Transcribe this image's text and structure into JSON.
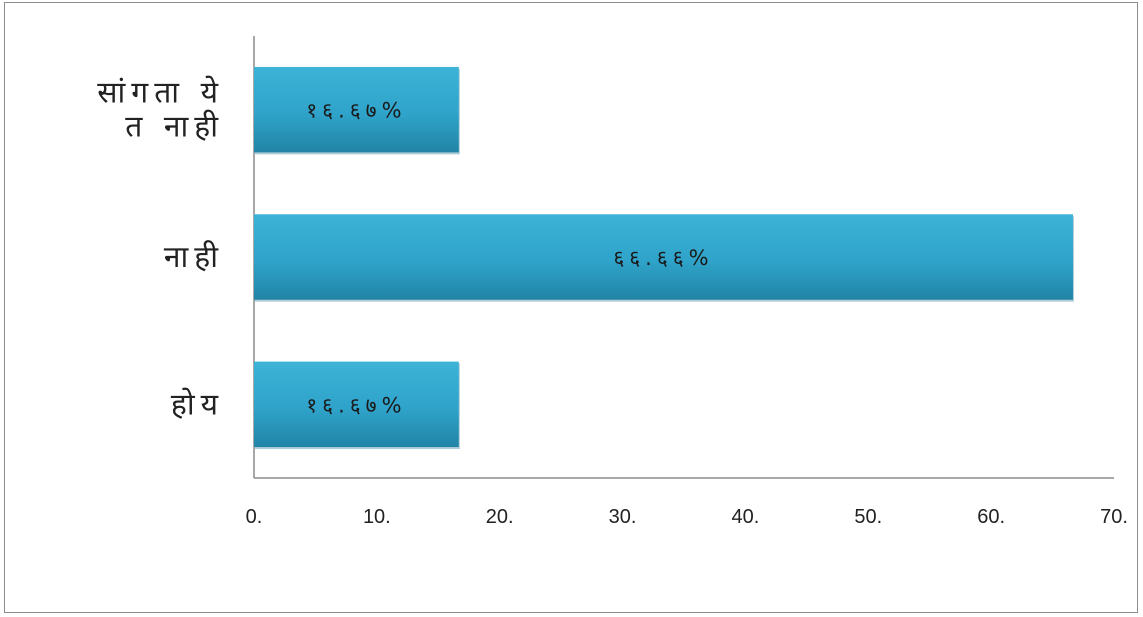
{
  "chart_data": {
    "type": "bar",
    "orientation": "horizontal",
    "categories": [
      "होय",
      "नाही",
      "सांगता येत नाही"
    ],
    "category_lines": [
      [
        "होय"
      ],
      [
        "नाही"
      ],
      [
        "सांगता ये",
        "त नाही"
      ]
    ],
    "values": [
      16.67,
      66.66,
      16.67
    ],
    "data_labels": [
      "१६.६७%",
      "६६.६६%",
      "१६.६७%"
    ],
    "xlim": [
      0,
      70
    ],
    "xticks": [
      0,
      10,
      20,
      30,
      40,
      50,
      60,
      70
    ],
    "xtick_labels": [
      "0.",
      "10.",
      "20.",
      "30.",
      "40.",
      "50.",
      "60.",
      "70."
    ],
    "title": "",
    "xlabel": "",
    "ylabel": "",
    "grid": false,
    "legend": "none",
    "colors": {
      "bar_top": "#3db3d8",
      "bar_bottom": "#2184a6",
      "axis": "#8c8c8c",
      "frame": "#8c8c8c"
    }
  }
}
